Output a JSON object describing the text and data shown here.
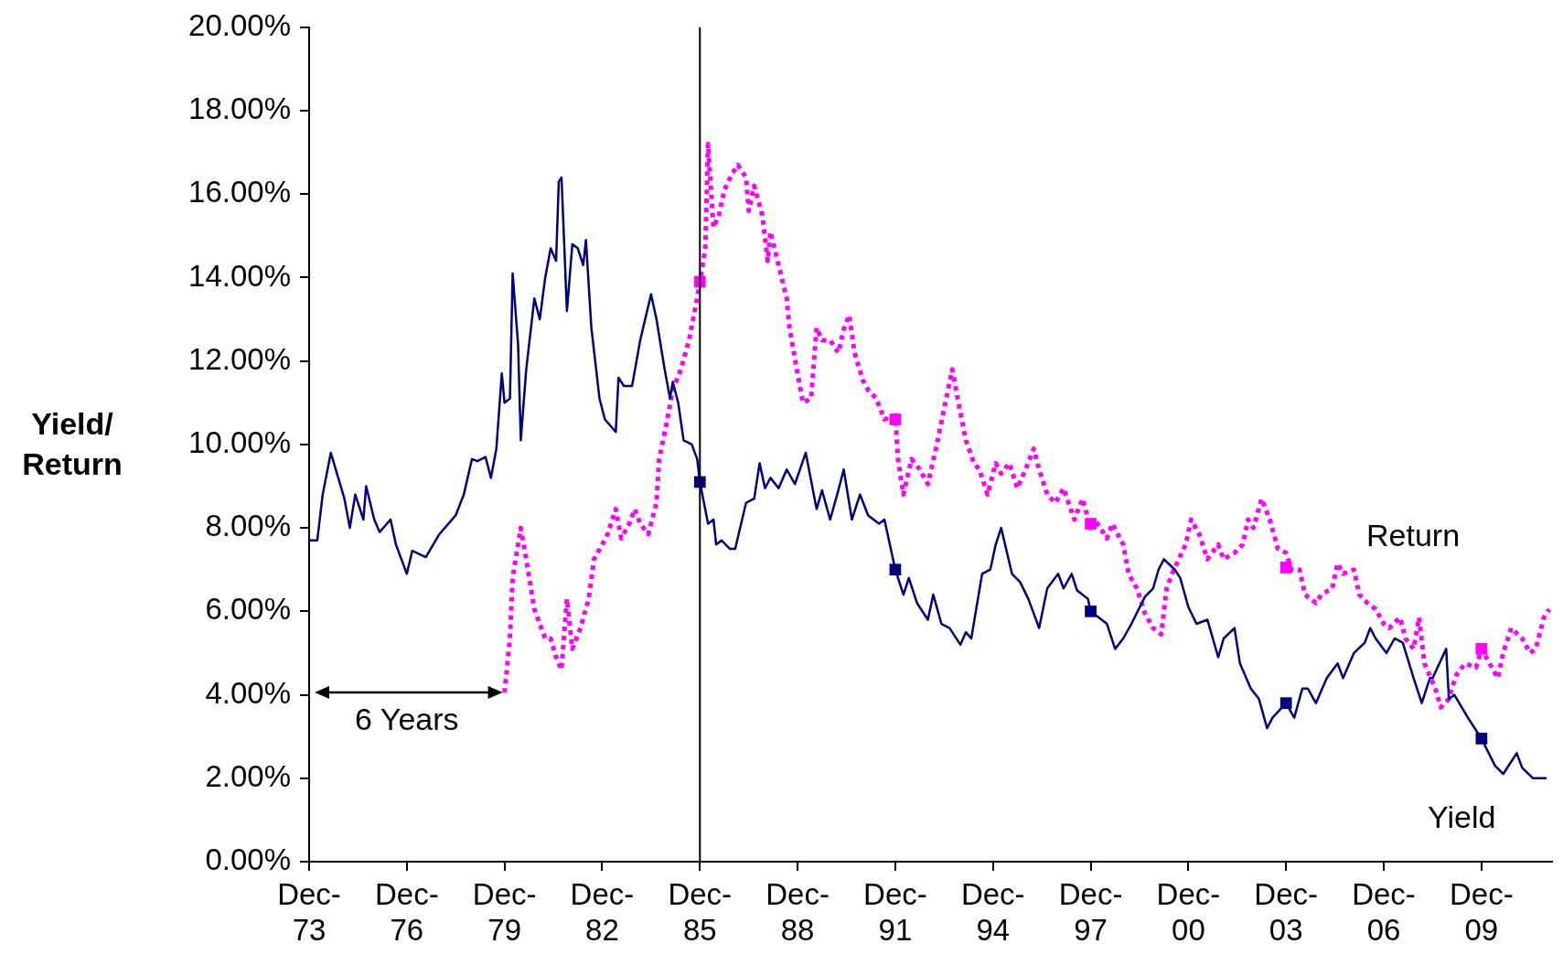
{
  "chart_data": {
    "type": "line",
    "ylabel": "Yield/ Return",
    "xlim": [
      "1973-12",
      "2012-02"
    ],
    "xticks": [
      {
        "value": "1973-12",
        "label": "Dec-73"
      },
      {
        "value": "1976-12",
        "label": "Dec-76"
      },
      {
        "value": "1979-12",
        "label": "Dec-79"
      },
      {
        "value": "1982-12",
        "label": "Dec-82"
      },
      {
        "value": "1985-12",
        "label": "Dec-85"
      },
      {
        "value": "1988-12",
        "label": "Dec-88"
      },
      {
        "value": "1991-12",
        "label": "Dec-91"
      },
      {
        "value": "1994-12",
        "label": "Dec-94"
      },
      {
        "value": "1997-12",
        "label": "Dec-97"
      },
      {
        "value": "2000-12",
        "label": "Dec-00"
      },
      {
        "value": "2003-12",
        "label": "Dec-03"
      },
      {
        "value": "2006-12",
        "label": "Dec-06"
      },
      {
        "value": "2009-12",
        "label": "Dec-09"
      }
    ],
    "ylim": [
      0,
      20
    ],
    "yticks": [
      {
        "value": 0,
        "label": "0.00%"
      },
      {
        "value": 2,
        "label": "2.00%"
      },
      {
        "value": 4,
        "label": "4.00%"
      },
      {
        "value": 6,
        "label": "6.00%"
      },
      {
        "value": 8,
        "label": "8.00%"
      },
      {
        "value": 10,
        "label": "10.00%"
      },
      {
        "value": 12,
        "label": "12.00%"
      },
      {
        "value": 14,
        "label": "14.00%"
      },
      {
        "value": 16,
        "label": "16.00%"
      },
      {
        "value": 18,
        "label": "18.00%"
      },
      {
        "value": 20,
        "label": "20.00%"
      }
    ],
    "grid": false,
    "legend": false,
    "ref_lines": [
      {
        "axis": "x",
        "value": "1985-12",
        "color": "#000000"
      }
    ],
    "annotations": [
      "6 Years"
    ],
    "series": [
      {
        "name": "Yield",
        "color": "#000080",
        "line_style": "solid",
        "marker": "none",
        "x": [
          "1973-12",
          "1974-03",
          "1974-05",
          "1974-08",
          "1975-01",
          "1975-03",
          "1975-05",
          "1975-08",
          "1975-09",
          "1975-12",
          "1976-02",
          "1976-06",
          "1976-08",
          "1976-12",
          "1977-02",
          "1977-07",
          "1977-12",
          "1978-06",
          "1978-09",
          "1978-12",
          "1979-02",
          "1979-05",
          "1979-07",
          "1979-09",
          "1979-11",
          "1979-12",
          "1980-02",
          "1980-03",
          "1980-05",
          "1980-06",
          "1980-08",
          "1980-11",
          "1981-01",
          "1981-03",
          "1981-05",
          "1981-07",
          "1981-08",
          "1981-09",
          "1981-11",
          "1982-01",
          "1982-03",
          "1982-05",
          "1982-06",
          "1982-08",
          "1982-11",
          "1983-01",
          "1983-05",
          "1983-06",
          "1983-08",
          "1983-11",
          "1984-02",
          "1984-06",
          "1984-08",
          "1984-11",
          "1985-01",
          "1985-02",
          "1985-04",
          "1985-06",
          "1985-09",
          "1985-11",
          "1985-12",
          "1986-03",
          "1986-05",
          "1986-06",
          "1986-08",
          "1986-11",
          "1987-01",
          "1987-05",
          "1987-08",
          "1987-10",
          "1987-12",
          "1988-02",
          "1988-05",
          "1988-08",
          "1988-11",
          "1989-03",
          "1989-07",
          "1989-09",
          "1989-12",
          "1990-03",
          "1990-05",
          "1990-08",
          "1990-11",
          "1991-02",
          "1991-06",
          "1991-08",
          "1991-12",
          "1992-03",
          "1992-05",
          "1992-08",
          "1992-12",
          "1993-02",
          "1993-05",
          "1993-08",
          "1993-12",
          "1994-02",
          "1994-04",
          "1994-08",
          "1994-11",
          "1995-01",
          "1995-03",
          "1995-07",
          "1995-10",
          "1996-01",
          "1996-05",
          "1996-08",
          "1996-12",
          "1997-02",
          "1997-05",
          "1997-07",
          "1997-11",
          "1997-12",
          "1998-06",
          "1998-09",
          "1998-12",
          "1999-03",
          "1999-08",
          "1999-11",
          "2000-01",
          "2000-03",
          "2000-07",
          "2000-09",
          "2000-12",
          "2001-03",
          "2001-07",
          "2001-11",
          "2002-01",
          "2002-05",
          "2002-07",
          "2002-11",
          "2003-02",
          "2003-05",
          "2003-07",
          "2003-12",
          "2004-03",
          "2004-06",
          "2004-08",
          "2004-11",
          "2005-03",
          "2005-07",
          "2005-09",
          "2006-01",
          "2006-05",
          "2006-07",
          "2006-09",
          "2007-01",
          "2007-04",
          "2007-07",
          "2007-11",
          "2008-02",
          "2008-05",
          "2008-06",
          "2008-11",
          "2008-12",
          "2009-02",
          "2009-07",
          "2009-12",
          "2010-05",
          "2010-08",
          "2010-11",
          "2011-01",
          "2011-03",
          "2011-07",
          "2011-12"
        ],
        "values": [
          7.7,
          7.7,
          8.8,
          9.8,
          8.7,
          8.0,
          8.8,
          8.2,
          9.0,
          8.2,
          7.9,
          8.2,
          7.6,
          6.9,
          7.45,
          7.3,
          7.85,
          8.3,
          8.8,
          9.65,
          9.6,
          9.7,
          9.2,
          9.9,
          11.7,
          11.0,
          11.1,
          14.1,
          12.4,
          10.1,
          11.8,
          13.5,
          13.0,
          14.0,
          14.7,
          14.4,
          16.3,
          16.4,
          13.2,
          14.8,
          14.7,
          14.3,
          14.9,
          12.8,
          11.1,
          10.6,
          10.3,
          11.6,
          11.4,
          11.4,
          12.5,
          13.6,
          13.0,
          11.8,
          11.1,
          11.5,
          11.0,
          10.1,
          10.0,
          9.65,
          9.1,
          8.1,
          8.2,
          7.6,
          7.7,
          7.5,
          7.5,
          8.6,
          8.7,
          9.55,
          8.95,
          9.2,
          8.95,
          9.4,
          9.05,
          9.8,
          8.45,
          8.9,
          8.2,
          8.9,
          9.4,
          8.2,
          8.8,
          8.3,
          8.1,
          8.2,
          7.0,
          6.4,
          6.8,
          6.2,
          5.8,
          6.4,
          5.7,
          5.6,
          5.2,
          5.5,
          5.35,
          6.9,
          7.0,
          7.6,
          8.0,
          6.9,
          6.7,
          6.3,
          5.6,
          6.55,
          6.9,
          6.55,
          6.9,
          6.5,
          6.3,
          6.0,
          5.7,
          5.1,
          5.35,
          5.7,
          6.35,
          6.55,
          7.0,
          7.25,
          7.0,
          6.8,
          6.1,
          5.7,
          5.8,
          4.9,
          5.35,
          5.6,
          4.75,
          4.15,
          3.9,
          3.2,
          3.45,
          3.8,
          3.45,
          4.15,
          4.15,
          3.8,
          4.4,
          4.75,
          4.4,
          5.0,
          5.25,
          5.6,
          5.35,
          5.0,
          5.35,
          5.25,
          4.4,
          3.8,
          4.4,
          4.4,
          5.1,
          3.9,
          4.0,
          3.45,
          2.95,
          2.3,
          2.1,
          2.4,
          2.6,
          2.25,
          2.0,
          2.0
        ]
      },
      {
        "name": "Return",
        "color": "#ff00ff",
        "line_style": "dotted",
        "marker": "none",
        "x": [
          "1979-12",
          "1980-02",
          "1980-03",
          "1980-06",
          "1980-08",
          "1980-11",
          "1981-01",
          "1981-03",
          "1981-05",
          "1981-07",
          "1981-09",
          "1981-11",
          "1982-01",
          "1982-04",
          "1982-07",
          "1982-09",
          "1982-12",
          "1983-02",
          "1983-05",
          "1983-07",
          "1983-10",
          "1983-12",
          "1984-02",
          "1984-05",
          "1984-08",
          "1984-09",
          "1984-12",
          "1985-02",
          "1985-05",
          "1985-08",
          "1985-11",
          "1985-12",
          "1986-02",
          "1986-03",
          "1986-05",
          "1986-07",
          "1986-09",
          "1986-12",
          "1987-02",
          "1987-05",
          "1987-06",
          "1987-08",
          "1987-11",
          "1988-01",
          "1988-02",
          "1988-05",
          "1988-08",
          "1988-09",
          "1988-12",
          "1989-02",
          "1989-05",
          "1989-07",
          "1989-09",
          "1989-12",
          "1990-03",
          "1990-05",
          "1990-07",
          "1990-09",
          "1990-12",
          "1991-02",
          "1991-05",
          "1991-08",
          "1991-12",
          "1992-01",
          "1992-03",
          "1992-06",
          "1992-09",
          "1992-12",
          "1993-03",
          "1993-06",
          "1993-09",
          "1993-11",
          "1994-02",
          "1994-05",
          "1994-07",
          "1994-10",
          "1995-01",
          "1995-03",
          "1995-06",
          "1995-09",
          "1995-12",
          "1996-03",
          "1996-05",
          "1996-08",
          "1996-11",
          "1997-02",
          "1997-06",
          "1997-09",
          "1997-12",
          "1998-02",
          "1998-06",
          "1998-08",
          "1998-12",
          "1999-02",
          "1999-05",
          "1999-08",
          "1999-11",
          "2000-02",
          "2000-04",
          "2000-06",
          "2000-11",
          "2001-01",
          "2001-04",
          "2001-07",
          "2001-11",
          "2002-01",
          "2002-05",
          "2002-08",
          "2002-10",
          "2002-12",
          "2003-03",
          "2003-06",
          "2003-09",
          "2003-12",
          "2004-02",
          "2004-05",
          "2004-07",
          "2004-11",
          "2005-01",
          "2005-05",
          "2005-07",
          "2005-09",
          "2006-01",
          "2006-03",
          "2006-06",
          "2006-09",
          "2006-12",
          "2007-02",
          "2007-06",
          "2007-08",
          "2007-11",
          "2008-01",
          "2008-03",
          "2008-07",
          "2008-09",
          "2008-12",
          "2009-01",
          "2009-03",
          "2009-06",
          "2009-10",
          "2009-12",
          "2010-03",
          "2010-06",
          "2010-08",
          "2010-11",
          "2011-03",
          "2011-06",
          "2011-08",
          "2011-11",
          "2012-01"
        ],
        "values": [
          4.05,
          5.35,
          6.8,
          8.0,
          7.25,
          6.05,
          5.7,
          5.35,
          5.35,
          4.9,
          4.6,
          6.3,
          5.1,
          5.6,
          6.3,
          7.25,
          7.6,
          7.85,
          8.45,
          7.75,
          8.1,
          8.45,
          8.1,
          7.85,
          8.6,
          9.65,
          10.6,
          11.3,
          11.8,
          12.5,
          13.5,
          13.9,
          14.7,
          17.2,
          15.2,
          15.5,
          16.1,
          16.5,
          16.7,
          16.4,
          15.6,
          16.2,
          15.5,
          14.4,
          15.1,
          14.3,
          13.5,
          12.8,
          11.7,
          11.0,
          11.1,
          12.8,
          12.5,
          12.5,
          12.2,
          12.75,
          13.1,
          12.2,
          11.55,
          11.3,
          11.1,
          10.6,
          10.7,
          9.65,
          8.8,
          9.65,
          9.4,
          9.05,
          9.9,
          10.85,
          11.8,
          11.1,
          10.1,
          9.55,
          9.4,
          8.8,
          9.55,
          9.3,
          9.55,
          8.95,
          9.4,
          9.9,
          9.4,
          8.8,
          8.6,
          8.95,
          8.2,
          8.7,
          8.0,
          8.15,
          7.75,
          8.1,
          7.6,
          6.9,
          6.55,
          5.95,
          5.6,
          5.45,
          6.55,
          6.9,
          7.6,
          8.2,
          7.85,
          7.25,
          7.6,
          7.25,
          7.4,
          7.6,
          8.2,
          8.0,
          8.7,
          8.2,
          7.5,
          7.4,
          7.0,
          7.0,
          6.4,
          6.2,
          6.4,
          6.55,
          7.15,
          6.9,
          7.0,
          6.4,
          6.2,
          6.05,
          5.7,
          5.6,
          5.85,
          5.35,
          5.1,
          5.85,
          4.75,
          4.15,
          3.7,
          3.9,
          4.15,
          4.5,
          4.75,
          4.65,
          5.1,
          4.75,
          4.4,
          5.0,
          5.6,
          5.35,
          5.0,
          5.1,
          5.85,
          6.05
        ]
      },
      {
        "type": "scatter",
        "color": "#000080",
        "marker": "square",
        "x": [
          "1985-12",
          "1991-12",
          "1997-12",
          "2003-12",
          "2009-12"
        ],
        "values": [
          9.1,
          7.0,
          6.0,
          3.8,
          2.95
        ]
      },
      {
        "type": "scatter",
        "color": "#ff00ff",
        "marker": "square",
        "x": [
          "1985-12",
          "1991-12",
          "1997-12",
          "2003-12",
          "2009-12"
        ],
        "values": [
          13.9,
          10.6,
          8.1,
          7.05,
          5.1
        ]
      }
    ]
  }
}
